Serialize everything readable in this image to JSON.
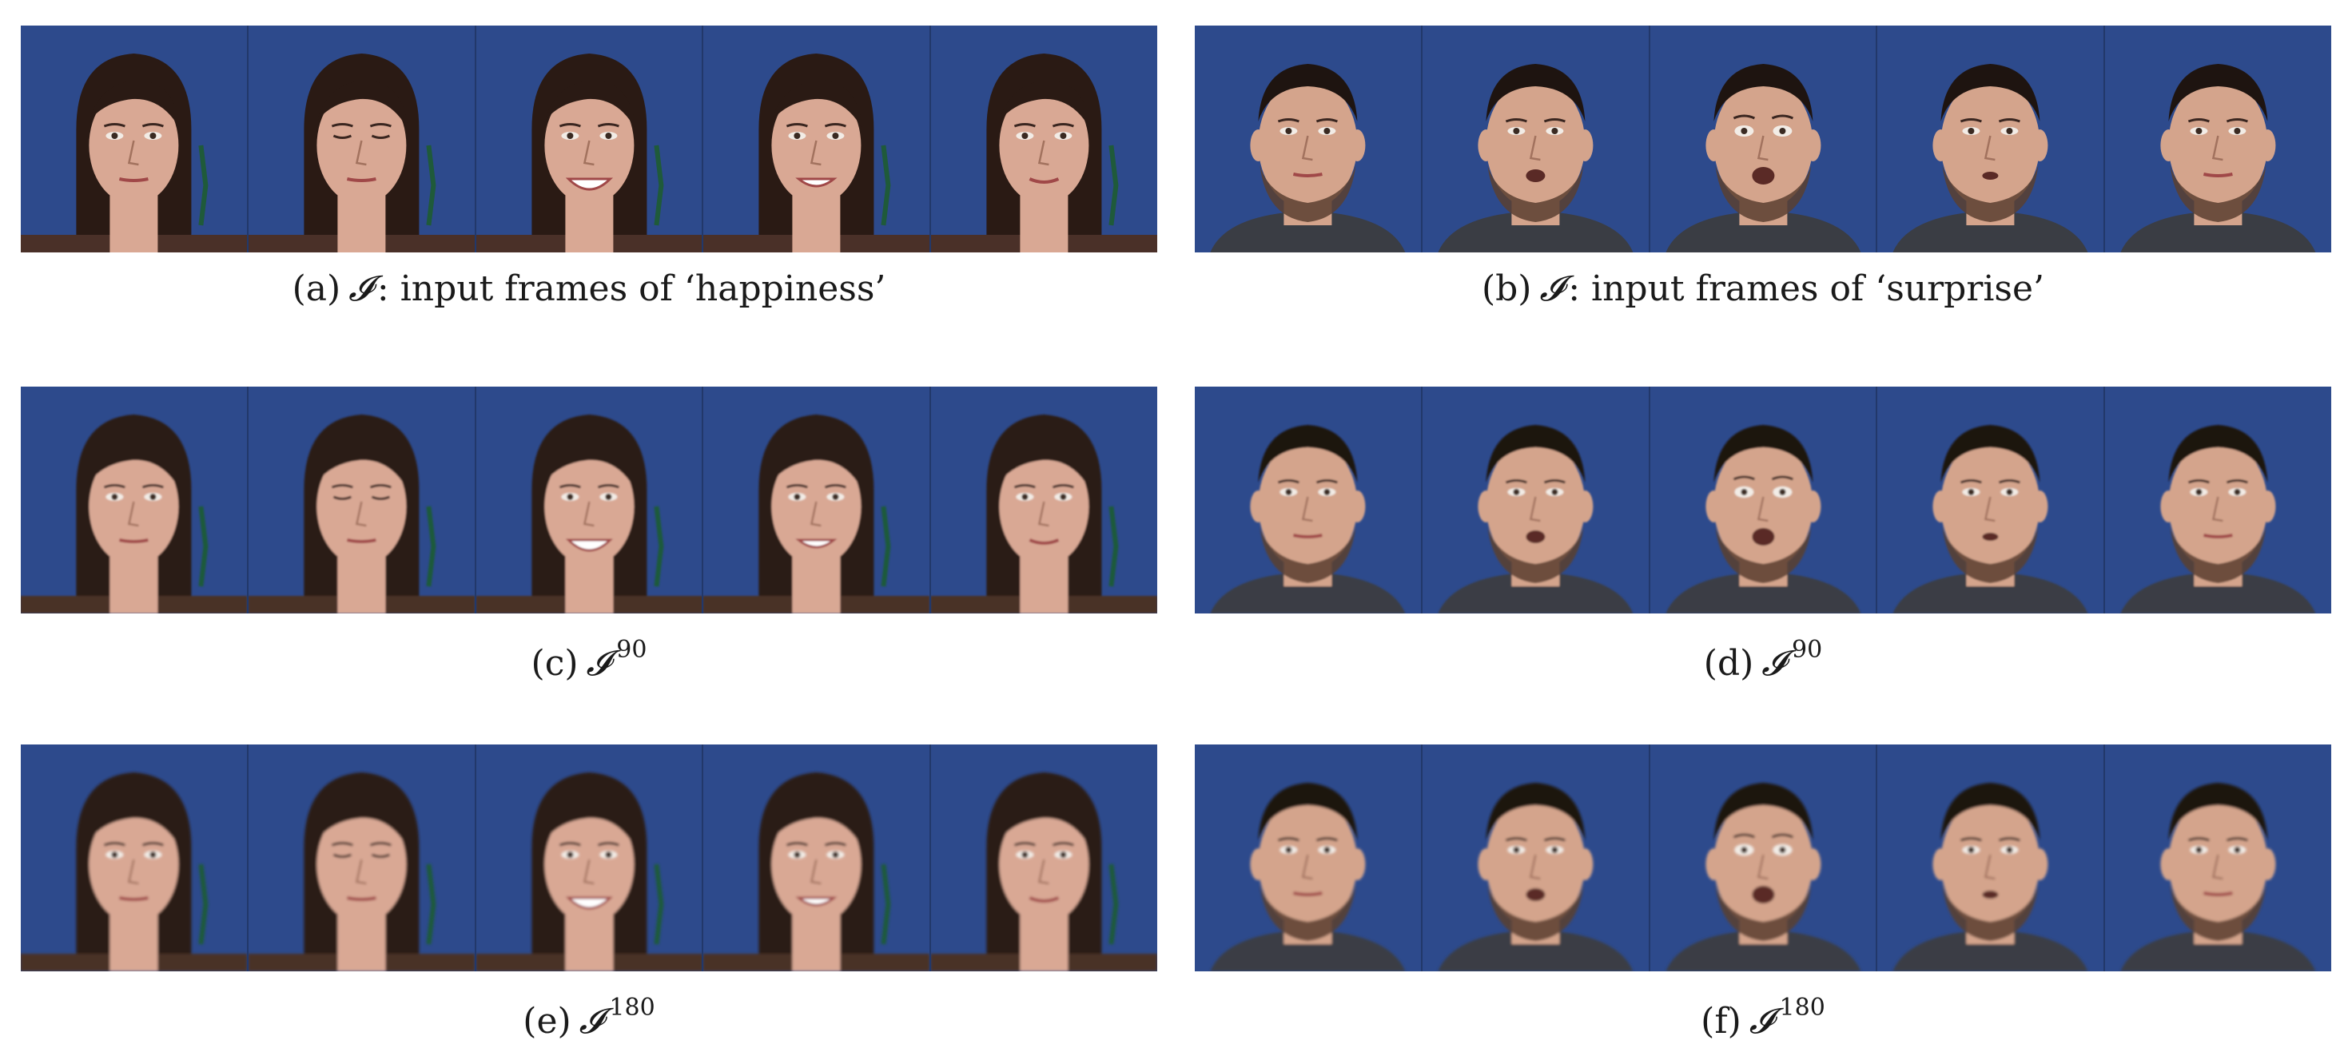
{
  "figure": {
    "panels": [
      {
        "id": "a",
        "label": "(a)",
        "symbol": "𝓘",
        "superscript": "",
        "text": ": input frames of ‘happiness’",
        "subject": "woman",
        "frames": [
          "neutral",
          "blink",
          "smile-wide",
          "smile",
          "slight-smile"
        ]
      },
      {
        "id": "b",
        "label": "(b)",
        "symbol": "𝓘",
        "superscript": "",
        "text": ": input frames of ‘surprise’",
        "subject": "man",
        "frames": [
          "neutral",
          "open-mouth",
          "surprise",
          "slight-open",
          "neutral"
        ]
      },
      {
        "id": "c",
        "label": "(c)",
        "symbol": "𝓘",
        "superscript": "90",
        "text": "",
        "subject": "woman",
        "frames": [
          "neutral",
          "blink",
          "smile-wide",
          "smile",
          "slight-smile"
        ]
      },
      {
        "id": "d",
        "label": "(d)",
        "symbol": "𝓘",
        "superscript": "90",
        "text": "",
        "subject": "man",
        "frames": [
          "neutral",
          "open-mouth",
          "surprise",
          "slight-open",
          "neutral"
        ]
      },
      {
        "id": "e",
        "label": "(e)",
        "symbol": "𝓘",
        "superscript": "180",
        "text": "",
        "subject": "woman",
        "frames": [
          "neutral",
          "blink",
          "smile-wide",
          "smile",
          "slight-smile"
        ]
      },
      {
        "id": "f",
        "label": "(f)",
        "symbol": "𝓘",
        "superscript": "180",
        "text": "",
        "subject": "man",
        "frames": [
          "neutral",
          "open-mouth",
          "surprise",
          "slight-open",
          "neutral"
        ]
      }
    ],
    "colors": {
      "background_blue": "#2d4a8c",
      "woman_hair": "#2a1a14",
      "woman_skin": "#d9a894",
      "man_skin": "#d4a48c",
      "man_shirt": "#3a3d44",
      "beard": "#5a4030"
    }
  }
}
